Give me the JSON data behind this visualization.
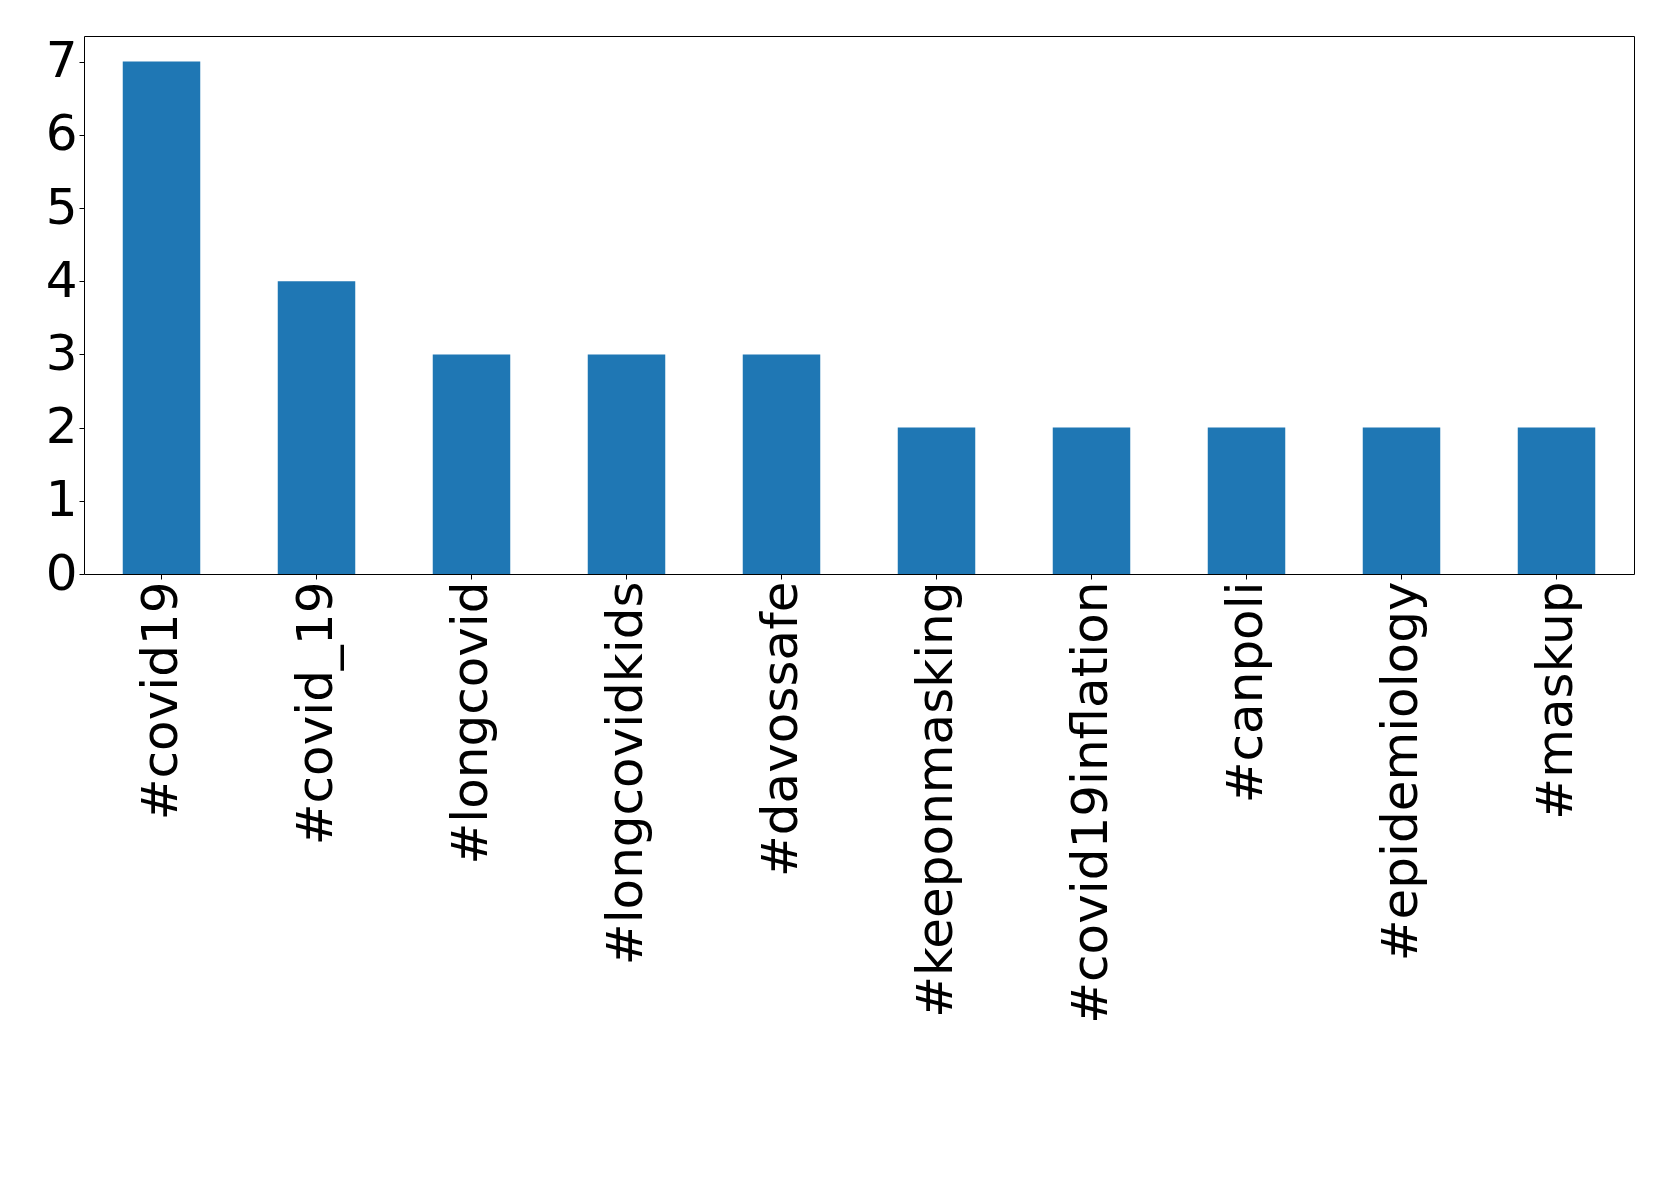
{
  "chart_data": {
    "type": "bar",
    "categories": [
      "#covid19",
      "#covid_19",
      "#longcovid",
      "#longcovidkids",
      "#davossafe",
      "#keeponmasking",
      "#covid19inflation",
      "#canpoli",
      "#epidemiology",
      "#maskup"
    ],
    "values": [
      7,
      4,
      3,
      3,
      3,
      2,
      2,
      2,
      2,
      2
    ],
    "color": "#1f77b4",
    "ylim": [
      0,
      7.35
    ],
    "yticks": [
      0,
      1,
      2,
      3,
      4,
      5,
      6,
      7
    ],
    "grid": false
  }
}
